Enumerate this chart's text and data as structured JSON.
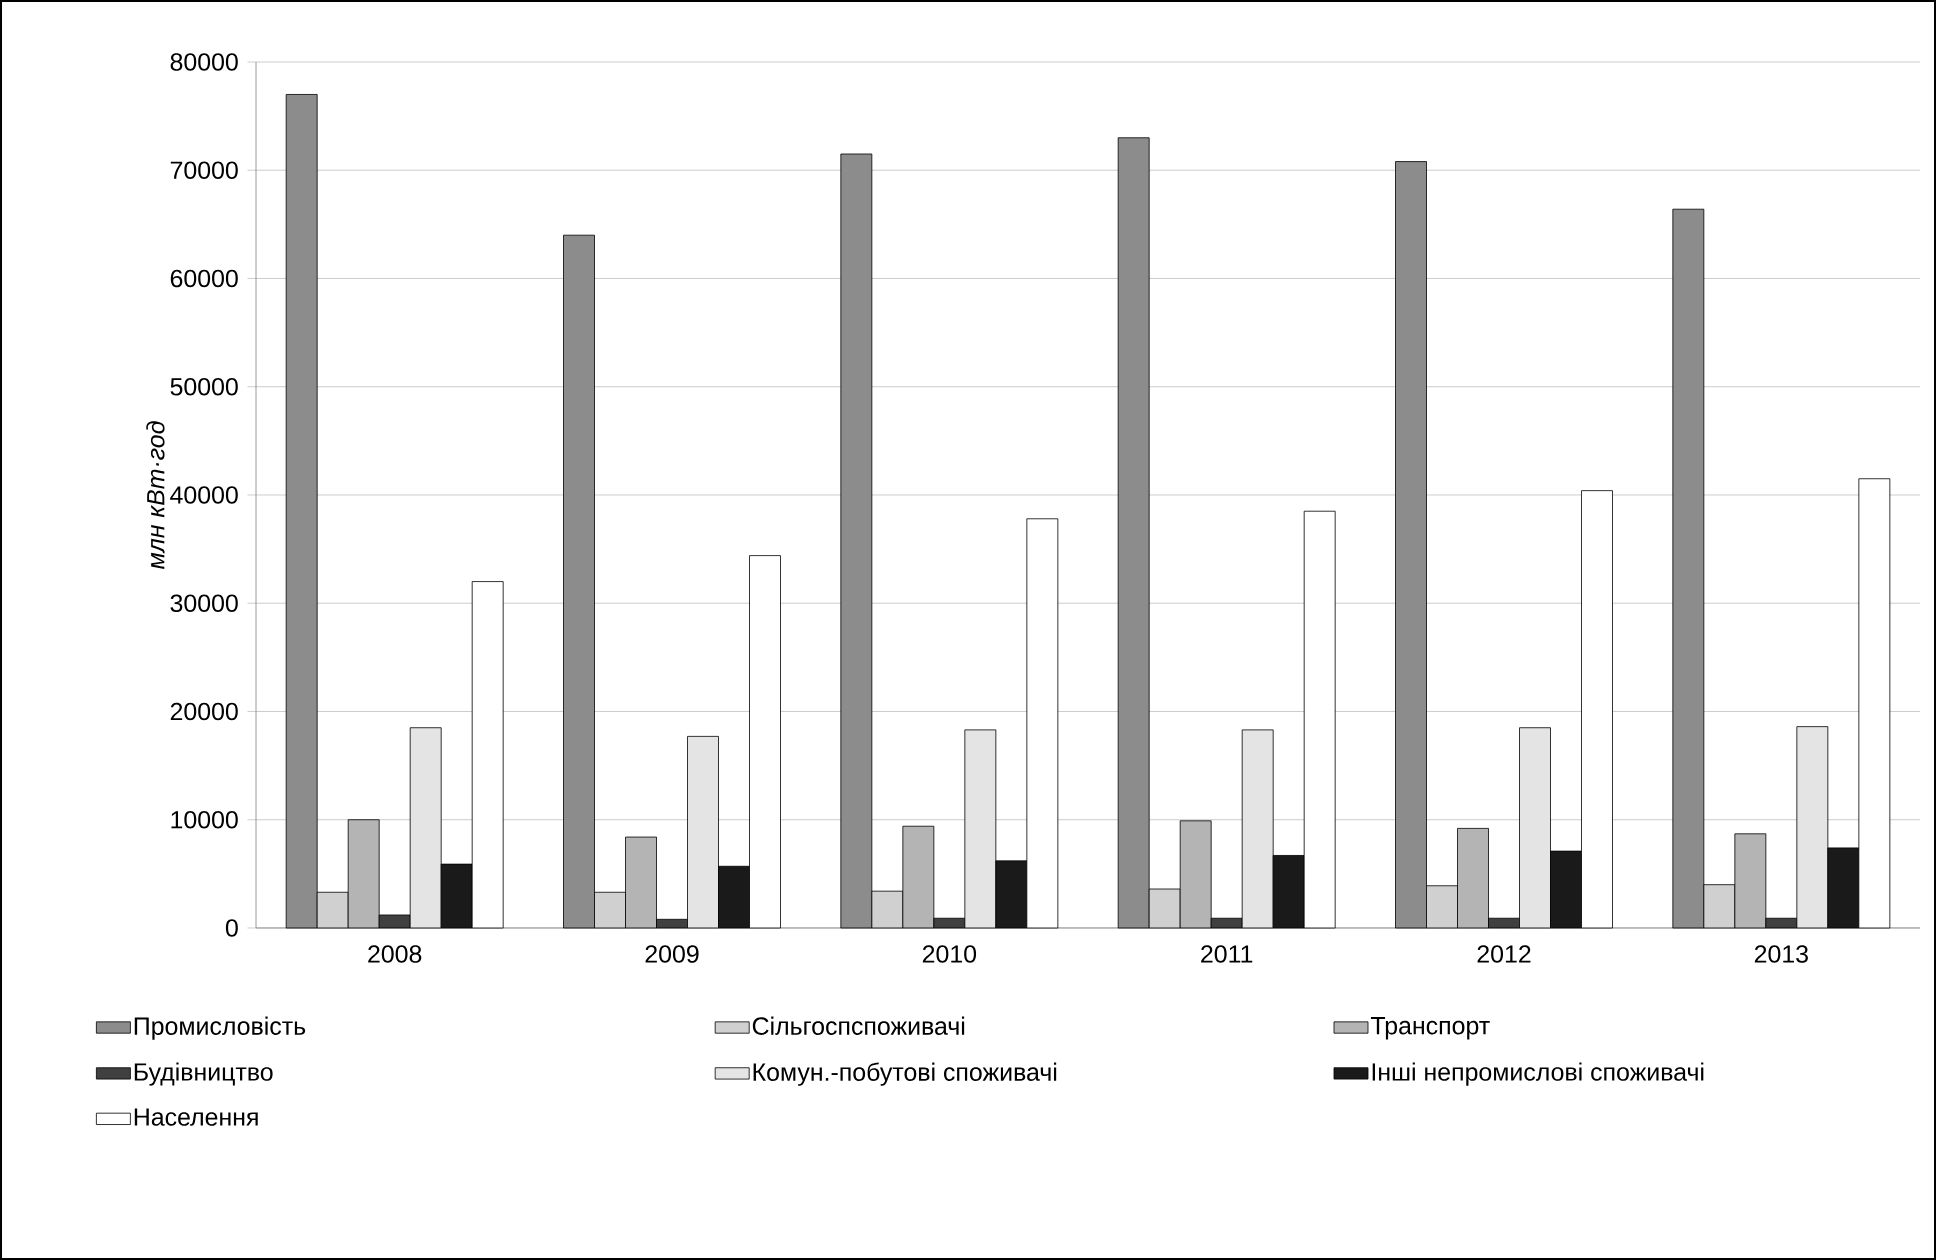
{
  "chart_data": {
    "type": "bar",
    "ylabel": "*млн кВт·год*",
    "categories": [
      "2008",
      "2009",
      "2010",
      "2011",
      "2012",
      "2013"
    ],
    "series": [
      {
        "name": "Промисловість",
        "color": "#8c8c8c",
        "values": [
          77000,
          64000,
          71500,
          73000,
          70800,
          66400
        ]
      },
      {
        "name": "Сільгоспспоживачі",
        "color": "#d0d0d0",
        "values": [
          3300,
          3300,
          3400,
          3600,
          3900,
          4000
        ]
      },
      {
        "name": "Транспорт",
        "color": "#b4b4b4",
        "values": [
          10000,
          8400,
          9400,
          9900,
          9200,
          8700
        ]
      },
      {
        "name": "Будівництво",
        "color": "#404040",
        "values": [
          1200,
          800,
          900,
          900,
          900,
          900
        ]
      },
      {
        "name": "Комун.-побутові споживачі",
        "color": "#e4e4e4",
        "values": [
          18500,
          17700,
          18300,
          18300,
          18500,
          18600
        ]
      },
      {
        "name": "Інші непромислові споживачі",
        "color": "#1a1a1a",
        "values": [
          5900,
          5700,
          6200,
          6700,
          7100,
          7400
        ]
      },
      {
        "name": "Населення",
        "color": "#ffffff",
        "values": [
          32000,
          34400,
          37800,
          38500,
          40400,
          41500
        ]
      }
    ],
    "ylim": [
      0,
      80000
    ],
    "yticks": [
      0,
      10000,
      20000,
      30000,
      40000,
      50000,
      60000,
      70000,
      80000
    ],
    "grid": "y",
    "legend": "bottom"
  }
}
